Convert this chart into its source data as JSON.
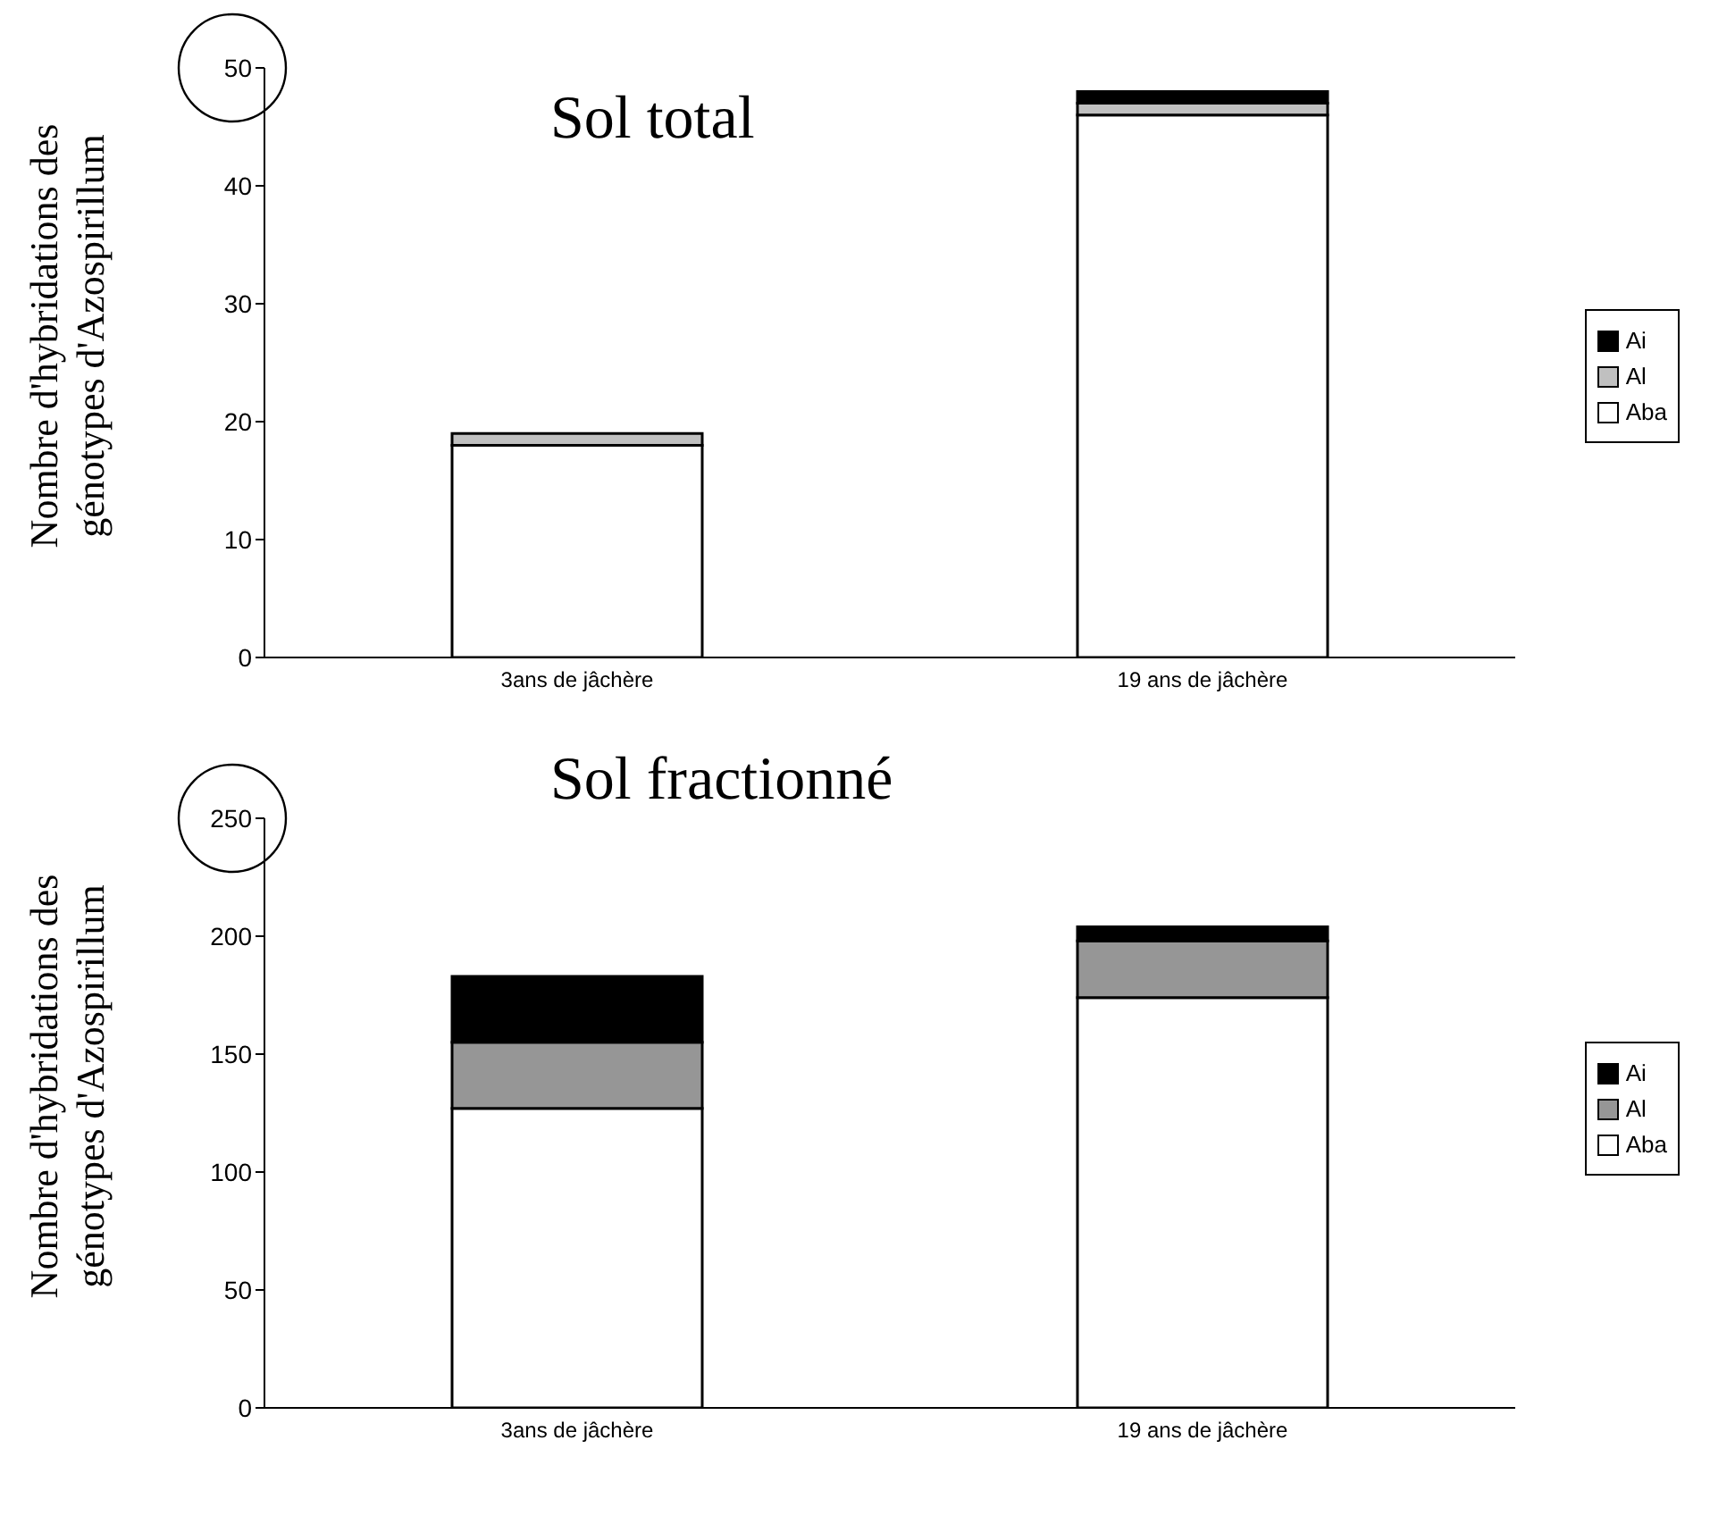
{
  "chart_data": [
    {
      "type": "bar",
      "title": "Sol total",
      "ylabel": "Nombre d'hybridations des génotypes d'Azospirillum",
      "categories": [
        "3ans de jâchère",
        "19 ans de jâchère"
      ],
      "stacked": true,
      "ylim": [
        0,
        50
      ],
      "yticks": [
        0,
        10,
        20,
        30,
        40,
        50
      ],
      "grid": false,
      "legend": "right",
      "series": [
        {
          "name": "Aba",
          "color": "#ffffff",
          "values": [
            18,
            46
          ]
        },
        {
          "name": "Al",
          "color": "#c0c0c0",
          "values": [
            1,
            1
          ]
        },
        {
          "name": "Ai",
          "color": "#000000",
          "values": [
            0,
            1
          ]
        }
      ]
    },
    {
      "type": "bar",
      "title": "Sol fractionné",
      "ylabel": "Nombre d'hybridations des génotypes d'Azospirillum",
      "categories": [
        "3ans de jâchère",
        "19 ans de jâchère"
      ],
      "stacked": true,
      "ylim": [
        0,
        250
      ],
      "yticks": [
        0,
        50,
        100,
        150,
        200,
        250
      ],
      "grid": false,
      "legend": "right",
      "series": [
        {
          "name": "Aba",
          "color": "#ffffff",
          "values": [
            127,
            174
          ]
        },
        {
          "name": "Al",
          "color": "#969696",
          "values": [
            28,
            24
          ]
        },
        {
          "name": "Ai",
          "color": "#000000",
          "values": [
            28,
            6
          ]
        }
      ]
    }
  ]
}
